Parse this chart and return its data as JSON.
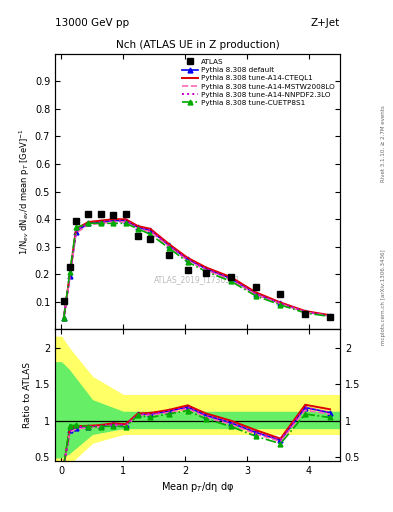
{
  "title_main": "Nch (ATLAS UE in Z production)",
  "top_left_label": "13000 GeV pp",
  "top_right_label": "Z+Jet",
  "right_label_top": "Rivet 3.1.10, ≥ 2.7M events",
  "right_label_bot": "mcplots.cern.ch [arXiv:1306.3436]",
  "watermark": "ATLAS_2019_I1736531",
  "ylabel_main": "1/N$_{ev}$ dN$_{ev}$/d mean p$_T$ [GeV]$^{-1}$",
  "ylabel_ratio": "Ratio to ATLAS",
  "xlabel": "Mean p$_T$/dη dφ",
  "ylim_main": [
    0.0,
    1.0
  ],
  "ylim_ratio": [
    0.45,
    2.25
  ],
  "xlim": [
    -0.1,
    4.5
  ],
  "yticks_main": [
    0.1,
    0.2,
    0.3,
    0.4,
    0.5,
    0.6,
    0.7,
    0.8,
    0.9
  ],
  "yticks_ratio": [
    0.5,
    1.0,
    1.5,
    2.0
  ],
  "atlas_x": [
    0.04,
    0.14,
    0.24,
    0.44,
    0.64,
    0.84,
    1.04,
    1.24,
    1.44,
    1.74,
    2.04,
    2.34,
    2.74,
    3.14,
    3.54,
    3.94,
    4.34
  ],
  "atlas_y": [
    0.105,
    0.225,
    0.395,
    0.42,
    0.42,
    0.415,
    0.42,
    0.34,
    0.33,
    0.27,
    0.215,
    0.205,
    0.19,
    0.155,
    0.13,
    0.055,
    0.045
  ],
  "x_mc": [
    0.04,
    0.14,
    0.24,
    0.44,
    0.64,
    0.84,
    1.04,
    1.24,
    1.44,
    1.74,
    2.04,
    2.34,
    2.74,
    3.14,
    3.54,
    3.94,
    4.34
  ],
  "default_y": [
    0.04,
    0.195,
    0.355,
    0.385,
    0.39,
    0.395,
    0.395,
    0.37,
    0.36,
    0.305,
    0.255,
    0.22,
    0.185,
    0.13,
    0.095,
    0.065,
    0.05
  ],
  "cteql1_y": [
    0.04,
    0.2,
    0.365,
    0.39,
    0.395,
    0.4,
    0.4,
    0.375,
    0.365,
    0.31,
    0.26,
    0.225,
    0.19,
    0.135,
    0.098,
    0.067,
    0.052
  ],
  "mstw_y": [
    0.04,
    0.19,
    0.35,
    0.38,
    0.385,
    0.39,
    0.39,
    0.365,
    0.355,
    0.3,
    0.25,
    0.215,
    0.18,
    0.127,
    0.093,
    0.063,
    0.049
  ],
  "nnpdf_y": [
    0.04,
    0.195,
    0.36,
    0.385,
    0.39,
    0.395,
    0.395,
    0.37,
    0.36,
    0.305,
    0.255,
    0.22,
    0.185,
    0.13,
    0.096,
    0.065,
    0.05
  ],
  "cuetp_y": [
    0.04,
    0.21,
    0.37,
    0.385,
    0.385,
    0.385,
    0.385,
    0.365,
    0.345,
    0.295,
    0.245,
    0.21,
    0.175,
    0.122,
    0.089,
    0.06,
    0.047
  ],
  "default_ratio": [
    0.38,
    0.87,
    0.9,
    0.92,
    0.93,
    0.95,
    0.94,
    1.09,
    1.09,
    1.13,
    1.19,
    1.07,
    0.97,
    0.84,
    0.73,
    1.18,
    1.11
  ],
  "cteql1_ratio": [
    0.38,
    0.89,
    0.925,
    0.93,
    0.94,
    0.965,
    0.952,
    1.1,
    1.106,
    1.148,
    1.21,
    1.098,
    1.0,
    0.871,
    0.754,
    1.218,
    1.156
  ],
  "mstw_ratio": [
    0.38,
    0.844,
    0.886,
    0.905,
    0.917,
    0.939,
    0.929,
    1.074,
    1.076,
    1.111,
    1.163,
    1.049,
    0.947,
    0.819,
    0.715,
    1.145,
    1.089
  ],
  "nnpdf_ratio": [
    0.38,
    0.867,
    0.912,
    0.919,
    0.929,
    0.952,
    0.942,
    1.088,
    1.091,
    1.13,
    1.186,
    1.073,
    0.974,
    0.839,
    0.738,
    1.182,
    1.111
  ],
  "cuetp_ratio": [
    0.38,
    0.933,
    0.937,
    0.917,
    0.917,
    0.928,
    0.917,
    1.074,
    1.045,
    1.093,
    1.139,
    1.024,
    0.921,
    0.787,
    0.685,
    1.091,
    1.044
  ],
  "color_default": "#0000ee",
  "color_cteql1": "#dd0000",
  "color_mstw": "#ff69b4",
  "color_nnpdf": "#cc00cc",
  "color_cuetp": "#00aa00",
  "color_atlas": "#000000",
  "band_yellow_x": [
    -0.1,
    0.0,
    0.12,
    0.5,
    1.0,
    1.5,
    2.0,
    2.5,
    3.0,
    3.5,
    4.0,
    4.5
  ],
  "band_yellow_lo": [
    0.35,
    0.35,
    0.4,
    0.7,
    0.82,
    0.82,
    0.82,
    0.82,
    0.82,
    0.82,
    0.82,
    0.82
  ],
  "band_yellow_hi": [
    2.15,
    2.15,
    2.0,
    1.6,
    1.35,
    1.35,
    1.35,
    1.35,
    1.35,
    1.35,
    1.35,
    1.35
  ],
  "band_green_x": [
    -0.1,
    0.0,
    0.12,
    0.5,
    1.0,
    1.5,
    2.0,
    2.5,
    3.0,
    3.5,
    4.0,
    4.5
  ],
  "band_green_lo": [
    0.5,
    0.5,
    0.55,
    0.82,
    0.9,
    0.9,
    0.9,
    0.9,
    0.9,
    0.9,
    0.9,
    0.9
  ],
  "band_green_hi": [
    1.8,
    1.8,
    1.7,
    1.28,
    1.12,
    1.12,
    1.12,
    1.12,
    1.12,
    1.12,
    1.12,
    1.12
  ]
}
